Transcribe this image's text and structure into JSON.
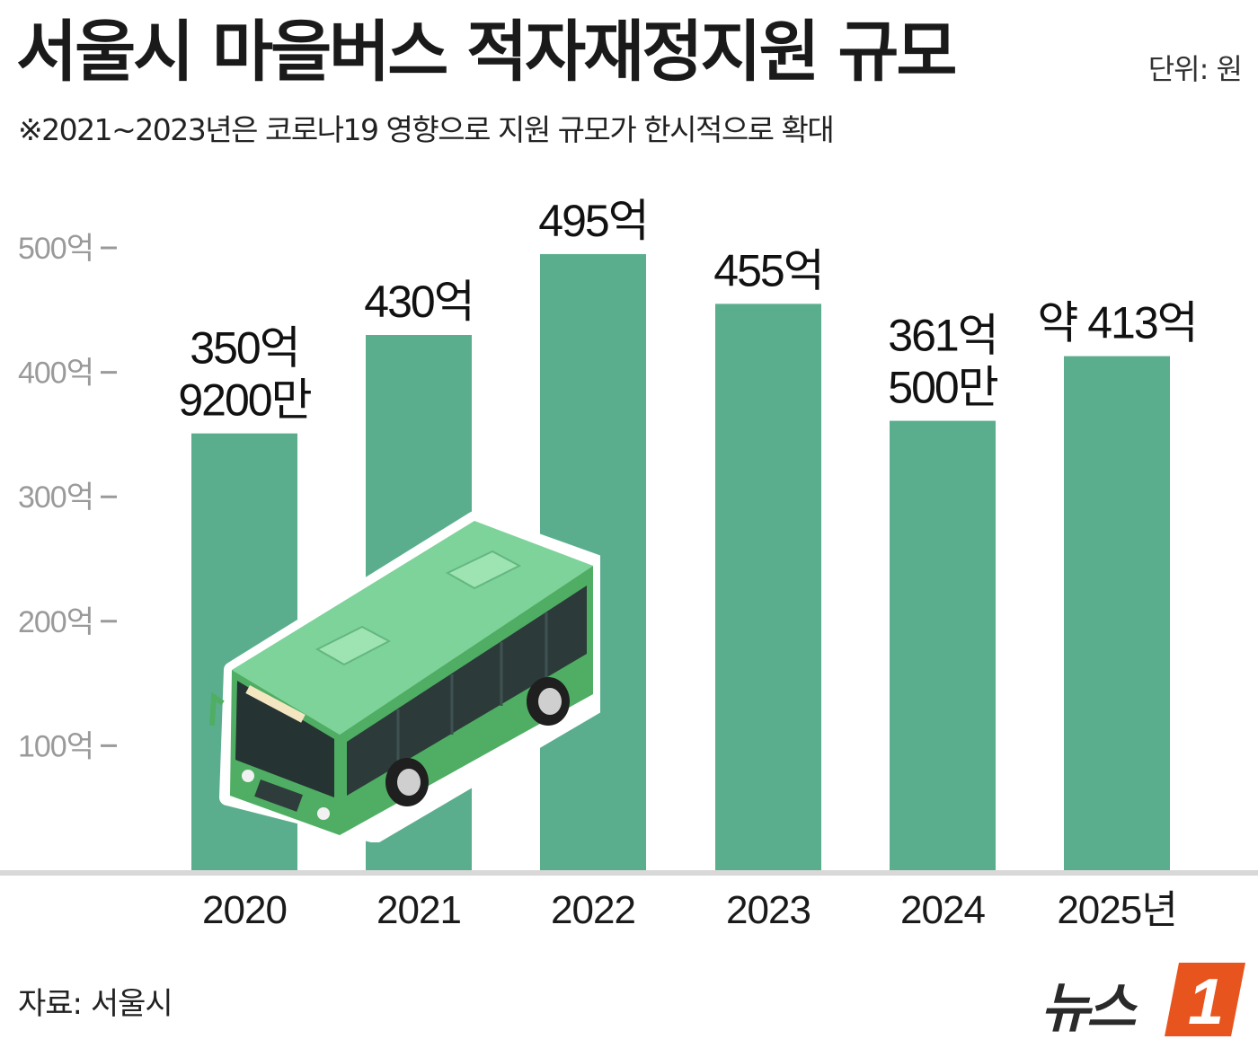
{
  "title": "서울시 마을버스 적자재정지원 규모",
  "unit_note": "단위: 원",
  "note": "※2021~2023년은 코로나19 영향으로 지원 규모가 한시적으로 확대",
  "source": "자료: 서울시",
  "logo": {
    "text": "뉴스",
    "mark": "1"
  },
  "colors": {
    "bar": "#5aae8e",
    "axis": "#9a9a9a",
    "baseline": "#d8d8d8",
    "logo_accent": "#e8541e",
    "bus_body": "#7dd39a"
  },
  "chart_data": {
    "type": "bar",
    "title": "서울시 마을버스 적자재정지원 규모",
    "unit": "단위: 원",
    "categories": [
      "2020",
      "2021",
      "2022",
      "2023",
      "2024",
      "2025년"
    ],
    "values": [
      350.92,
      430,
      495,
      455,
      361.05,
      413
    ],
    "data_labels": [
      [
        "350억",
        "9200만"
      ],
      [
        "430억"
      ],
      [
        "495억"
      ],
      [
        "455억"
      ],
      [
        "361억",
        "500만"
      ],
      [
        "약 413억"
      ]
    ],
    "yticks": [
      100,
      200,
      300,
      400,
      500
    ],
    "ytick_labels": [
      "100억",
      "200억",
      "300억",
      "400억",
      "500억"
    ],
    "ylim": [
      0,
      500
    ],
    "grid": false,
    "legend": "none"
  }
}
